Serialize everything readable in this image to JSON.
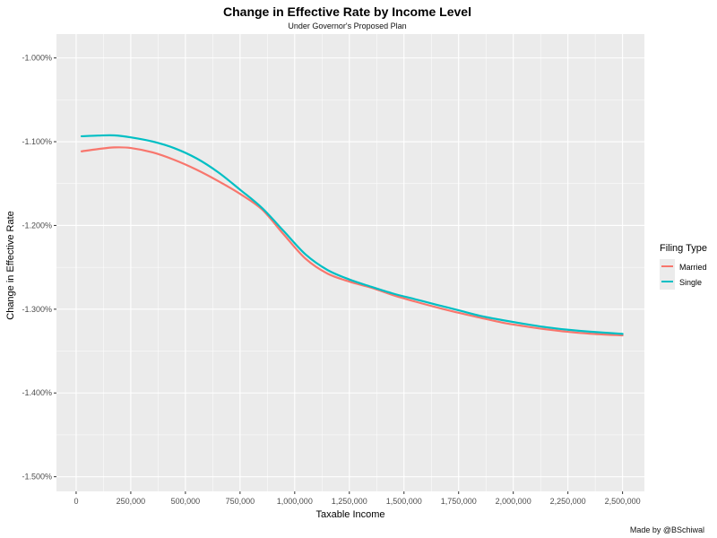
{
  "chart_data": {
    "type": "line",
    "title": "Change in Effective Rate by Income Level",
    "subtitle": "Under Governor's Proposed Plan",
    "xlabel": "Taxable Income",
    "ylabel": "Change in Effective Rate",
    "caption": "Made by @BSchiwal",
    "xlim": [
      -90000,
      2600000
    ],
    "ylim": [
      -1.5175,
      -0.9715
    ],
    "x_ticks": [
      0,
      250000,
      500000,
      750000,
      1000000,
      1250000,
      1500000,
      1750000,
      2000000,
      2250000,
      2500000
    ],
    "x_tick_labels": [
      "0",
      "250,000",
      "500,000",
      "750,000",
      "1,000,000",
      "1,250,000",
      "1,500,000",
      "1,750,000",
      "2,000,000",
      "2,250,000",
      "2,500,000"
    ],
    "y_ticks": [
      -1.0,
      -1.1,
      -1.2,
      -1.3,
      -1.4,
      -1.5
    ],
    "y_tick_labels": [
      "-1.000%",
      "-1.100%",
      "-1.200%",
      "-1.300%",
      "-1.400%",
      "-1.500%"
    ],
    "grid": true,
    "legend": {
      "title": "Filing Type",
      "position": "right"
    },
    "x": [
      25000,
      100000,
      175000,
      250000,
      350000,
      450000,
      550000,
      650000,
      750000,
      850000,
      950000,
      1050000,
      1150000,
      1250000,
      1350000,
      1450000,
      1550000,
      1650000,
      1750000,
      1850000,
      1950000,
      2050000,
      2150000,
      2250000,
      2350000,
      2500000
    ],
    "series": [
      {
        "name": "Married",
        "color": "#F8766D",
        "values": [
          -1.1115,
          -1.1088,
          -1.1068,
          -1.1075,
          -1.1128,
          -1.1218,
          -1.1333,
          -1.147,
          -1.1623,
          -1.1808,
          -1.2108,
          -1.2398,
          -1.2575,
          -1.267,
          -1.2743,
          -1.2832,
          -1.2908,
          -1.2978,
          -1.3043,
          -1.3102,
          -1.316,
          -1.3203,
          -1.324,
          -1.327,
          -1.3292,
          -1.3313
        ]
      },
      {
        "name": "Single",
        "color": "#00BFC4",
        "values": [
          -1.0935,
          -1.0927,
          -1.0925,
          -1.0948,
          -1.0998,
          -1.1078,
          -1.1198,
          -1.1365,
          -1.1573,
          -1.179,
          -1.2068,
          -1.2347,
          -1.2532,
          -1.2645,
          -1.2732,
          -1.2813,
          -1.288,
          -1.2947,
          -1.3013,
          -1.308,
          -1.313,
          -1.3175,
          -1.3215,
          -1.3245,
          -1.3268,
          -1.3295
        ]
      }
    ]
  }
}
